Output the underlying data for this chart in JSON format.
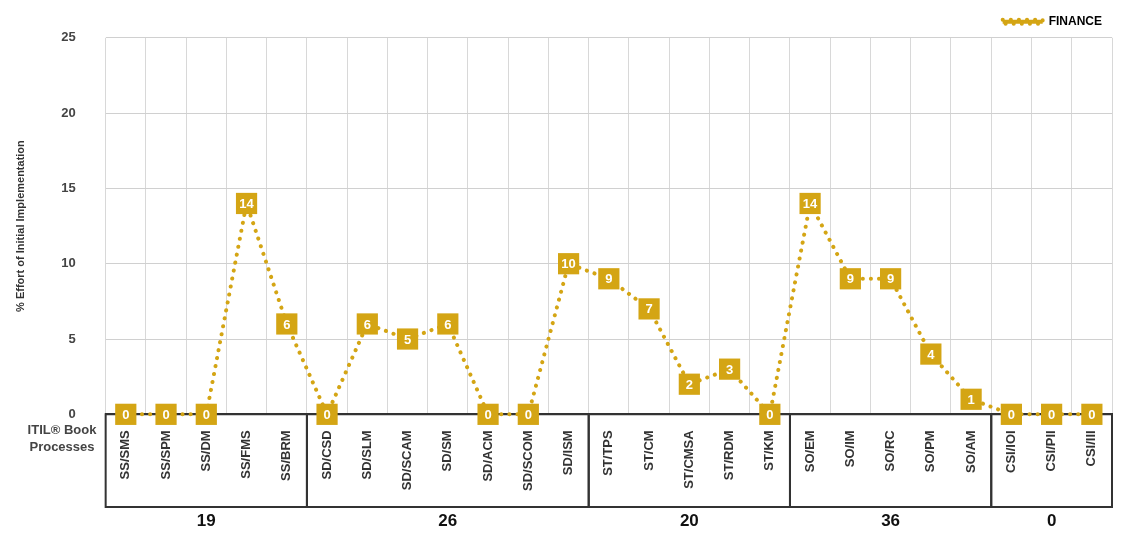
{
  "chart_data": {
    "type": "line",
    "ylabel": "% Effort of Initial Implementation",
    "xlabel": "ITIL® Book Processes",
    "categories": [
      "SS/SMS",
      "SS/SPM",
      "SS/DM",
      "SS/FMS",
      "SS/BRM",
      "SD/CSD",
      "SD/SLM",
      "SD/SCAM",
      "SD/SM",
      "SD/ACM",
      "SD/SCOM",
      "SD/ISM",
      "ST/TPS",
      "ST/CM",
      "ST/CMSA",
      "ST/RDM",
      "ST/KM",
      "SO/EM",
      "SO/IM",
      "SO/RC",
      "SO/PM",
      "SO/AM",
      "CSI/IOI",
      "CSI/PII",
      "CSI/III"
    ],
    "series": [
      {
        "name": "FINANCE",
        "color": "#d4a514",
        "values": [
          0,
          0,
          0,
          14,
          6,
          0,
          6,
          5,
          6,
          0,
          0,
          10,
          9,
          7,
          2,
          3,
          0,
          14,
          9,
          9,
          4,
          1,
          0,
          0,
          0
        ]
      }
    ],
    "ylim": [
      0,
      25
    ],
    "yticks": [
      0,
      5,
      10,
      15,
      20,
      25
    ],
    "grid": true,
    "legend": "top right",
    "marker": "square",
    "line_style": "dotted",
    "data_labels": true,
    "annotations": [
      "19",
      "26",
      "20",
      "36",
      "0"
    ]
  }
}
